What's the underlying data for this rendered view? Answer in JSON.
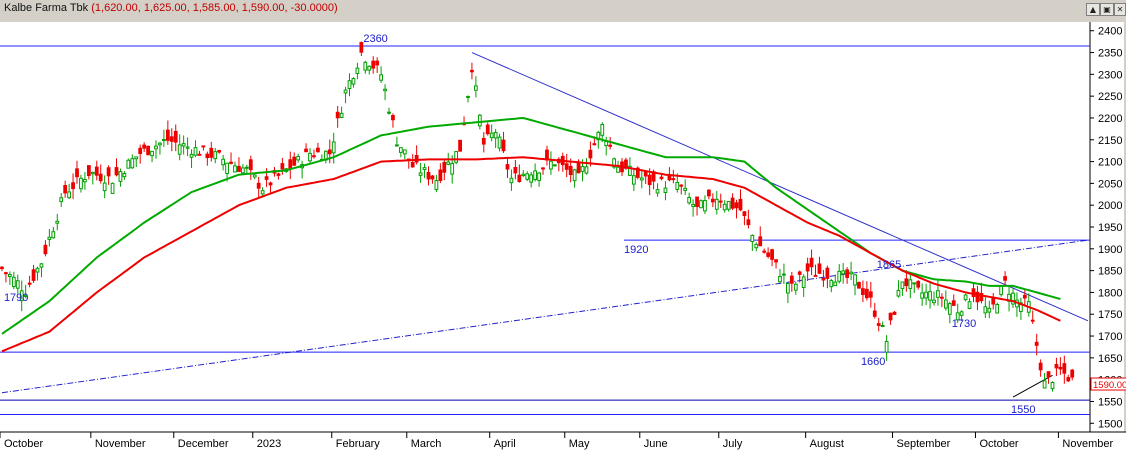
{
  "window": {
    "title": "Kalbe Farma Tbk",
    "ohlc_text": "(1,620.00, 1,625.00, 1,585.00, 1,590.00, -30.0000)",
    "buttons": [
      "▲",
      "▣",
      "✕"
    ]
  },
  "chart_data": {
    "type": "candlestick",
    "title": "Kalbe Farma Tbk",
    "ylim": [
      1480,
      2420
    ],
    "y_ticks": [
      1500,
      1550,
      1600,
      1650,
      1700,
      1750,
      1800,
      1850,
      1900,
      1950,
      2000,
      2050,
      2100,
      2150,
      2200,
      2250,
      2300,
      2350,
      2400
    ],
    "x_months": [
      "October",
      "November",
      "December",
      "2023",
      "February",
      "March",
      "April",
      "May",
      "June",
      "July",
      "August",
      "September",
      "October",
      "November"
    ],
    "month_starts": [
      0,
      23,
      44,
      64,
      84,
      103,
      124,
      143,
      162,
      182,
      204,
      226,
      247,
      268
    ],
    "last_price_label": "1590.000",
    "last_price": 1590,
    "price_anchors": [
      [
        0,
        1855
      ],
      [
        6,
        1805
      ],
      [
        10,
        1870
      ],
      [
        16,
        2030
      ],
      [
        22,
        2075
      ],
      [
        28,
        2060
      ],
      [
        35,
        2120
      ],
      [
        42,
        2150
      ],
      [
        48,
        2130
      ],
      [
        55,
        2110
      ],
      [
        62,
        2080
      ],
      [
        66,
        2040
      ],
      [
        72,
        2080
      ],
      [
        78,
        2120
      ],
      [
        83,
        2120
      ],
      [
        87,
        2260
      ],
      [
        91,
        2350
      ],
      [
        96,
        2300
      ],
      [
        100,
        2150
      ],
      [
        104,
        2090
      ],
      [
        110,
        2060
      ],
      [
        116,
        2130
      ],
      [
        119,
        2320
      ],
      [
        122,
        2140
      ],
      [
        125,
        2170
      ],
      [
        129,
        2060
      ],
      [
        134,
        2080
      ],
      [
        140,
        2100
      ],
      [
        146,
        2060
      ],
      [
        152,
        2180
      ],
      [
        156,
        2090
      ],
      [
        160,
        2070
      ],
      [
        165,
        2050
      ],
      [
        171,
        2050
      ],
      [
        176,
        1990
      ],
      [
        181,
        2020
      ],
      [
        187,
        1990
      ],
      [
        190,
        1930
      ],
      [
        196,
        1860
      ],
      [
        200,
        1810
      ],
      [
        204,
        1850
      ],
      [
        210,
        1840
      ],
      [
        216,
        1830
      ],
      [
        220,
        1780
      ],
      [
        224,
        1690
      ],
      [
        228,
        1830
      ],
      [
        232,
        1800
      ],
      [
        238,
        1790
      ],
      [
        242,
        1760
      ],
      [
        246,
        1800
      ],
      [
        250,
        1750
      ],
      [
        254,
        1820
      ],
      [
        257,
        1780
      ],
      [
        260,
        1770
      ],
      [
        262,
        1680
      ],
      [
        264,
        1590
      ],
      [
        268,
        1620
      ],
      [
        271,
        1600
      ]
    ],
    "ma_green_anchors": [
      [
        0,
        1705
      ],
      [
        12,
        1780
      ],
      [
        24,
        1880
      ],
      [
        36,
        1960
      ],
      [
        48,
        2030
      ],
      [
        60,
        2070
      ],
      [
        72,
        2080
      ],
      [
        84,
        2110
      ],
      [
        96,
        2160
      ],
      [
        108,
        2180
      ],
      [
        120,
        2190
      ],
      [
        132,
        2200
      ],
      [
        144,
        2170
      ],
      [
        156,
        2140
      ],
      [
        168,
        2110
      ],
      [
        180,
        2110
      ],
      [
        188,
        2100
      ],
      [
        196,
        2040
      ],
      [
        204,
        1990
      ],
      [
        212,
        1940
      ],
      [
        220,
        1890
      ],
      [
        228,
        1850
      ],
      [
        236,
        1830
      ],
      [
        244,
        1825
      ],
      [
        250,
        1815
      ],
      [
        256,
        1815
      ],
      [
        262,
        1800
      ],
      [
        268,
        1785
      ]
    ],
    "ma_red_anchors": [
      [
        0,
        1665
      ],
      [
        12,
        1710
      ],
      [
        24,
        1800
      ],
      [
        36,
        1880
      ],
      [
        48,
        1940
      ],
      [
        60,
        2000
      ],
      [
        72,
        2040
      ],
      [
        84,
        2060
      ],
      [
        96,
        2100
      ],
      [
        108,
        2105
      ],
      [
        120,
        2105
      ],
      [
        132,
        2110
      ],
      [
        144,
        2100
      ],
      [
        156,
        2090
      ],
      [
        168,
        2070
      ],
      [
        180,
        2060
      ],
      [
        188,
        2040
      ],
      [
        196,
        2000
      ],
      [
        204,
        1960
      ],
      [
        212,
        1930
      ],
      [
        220,
        1890
      ],
      [
        228,
        1850
      ],
      [
        236,
        1820
      ],
      [
        244,
        1800
      ],
      [
        250,
        1790
      ],
      [
        256,
        1780
      ],
      [
        262,
        1760
      ],
      [
        268,
        1735
      ]
    ],
    "horizontal_levels": [
      {
        "label": "2360",
        "value": 2365,
        "x_from": 0,
        "x_to": 275,
        "label_at": 92,
        "label_pos": "above",
        "color": "#2020ff"
      },
      {
        "label": "1920",
        "value": 1920,
        "x_from": 158,
        "x_to": 275,
        "label_at": 158,
        "label_pos": "below",
        "color": "#2020ff"
      },
      {
        "label": "1660",
        "value": 1663,
        "x_from": 0,
        "x_to": 275,
        "label_at": 218,
        "label_pos": "below",
        "color": "#2020ff"
      },
      {
        "label": "1550",
        "value": 1553,
        "x_from": 0,
        "x_to": 275,
        "label_at": 256,
        "label_pos": "below",
        "color": "#0000aa"
      },
      {
        "label": "",
        "value": 1520,
        "x_from": 0,
        "x_to": 275,
        "label_at": 0,
        "label_pos": "none",
        "color": "#2020ff"
      }
    ],
    "point_labels": [
      {
        "label": "1790",
        "x": 1,
        "value": 1790
      },
      {
        "label": "1865",
        "x": 222,
        "value": 1865
      },
      {
        "label": "1730",
        "x": 241,
        "value": 1730
      }
    ],
    "trend_lines": [
      {
        "name": "down-trend",
        "from": [
          119,
          2350
        ],
        "to": [
          275,
          1735
        ],
        "style": "solid",
        "color": "#3030cc"
      },
      {
        "name": "up-trend",
        "from": [
          0,
          1570
        ],
        "to": [
          275,
          1920
        ],
        "style": "dashdot",
        "color": "#2020cc"
      },
      {
        "name": "short-up",
        "from": [
          256,
          1560
        ],
        "to": [
          266,
          1610
        ],
        "style": "solid",
        "color": "#000000"
      }
    ],
    "colors": {
      "up": "#00a000",
      "down": "#ee0000",
      "ma_green": "#00aa00",
      "ma_red": "#ee0000"
    }
  }
}
